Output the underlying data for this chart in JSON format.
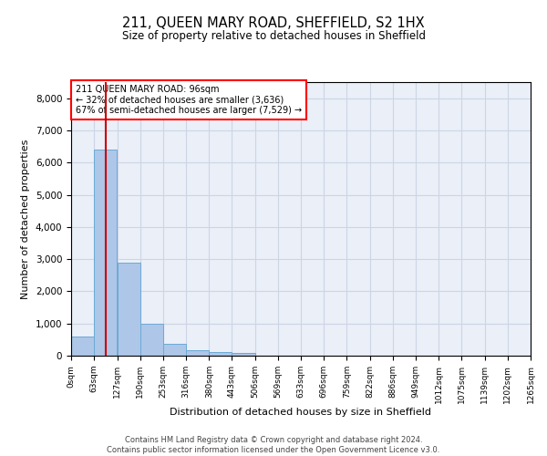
{
  "title_line1": "211, QUEEN MARY ROAD, SHEFFIELD, S2 1HX",
  "title_line2": "Size of property relative to detached houses in Sheffield",
  "xlabel": "Distribution of detached houses by size in Sheffield",
  "ylabel": "Number of detached properties",
  "bar_color": "#aec6e8",
  "bar_edge_color": "#6aaad4",
  "property_line_color": "#cc0000",
  "property_value": 96,
  "annotation_line1": "211 QUEEN MARY ROAD: 96sqm",
  "annotation_line2": "← 32% of detached houses are smaller (3,636)",
  "annotation_line3": "67% of semi-detached houses are larger (7,529) →",
  "bin_edges": [
    0,
    63,
    127,
    190,
    253,
    316,
    380,
    443,
    506,
    569,
    633,
    696,
    759,
    822,
    886,
    949,
    1012,
    1075,
    1139,
    1202,
    1265
  ],
  "bin_labels": [
    "0sqm",
    "63sqm",
    "127sqm",
    "190sqm",
    "253sqm",
    "316sqm",
    "380sqm",
    "443sqm",
    "506sqm",
    "569sqm",
    "633sqm",
    "696sqm",
    "759sqm",
    "822sqm",
    "886sqm",
    "949sqm",
    "1012sqm",
    "1075sqm",
    "1139sqm",
    "1202sqm",
    "1265sqm"
  ],
  "bar_heights": [
    600,
    6400,
    2900,
    1000,
    380,
    170,
    100,
    80,
    0,
    0,
    0,
    0,
    0,
    0,
    0,
    0,
    0,
    0,
    0,
    0
  ],
  "ylim": [
    0,
    8500
  ],
  "yticks": [
    0,
    1000,
    2000,
    3000,
    4000,
    5000,
    6000,
    7000,
    8000
  ],
  "grid_color": "#cdd5e5",
  "background_color": "#eaeff8",
  "footer_line1": "Contains HM Land Registry data © Crown copyright and database right 2024.",
  "footer_line2": "Contains public sector information licensed under the Open Government Licence v3.0."
}
